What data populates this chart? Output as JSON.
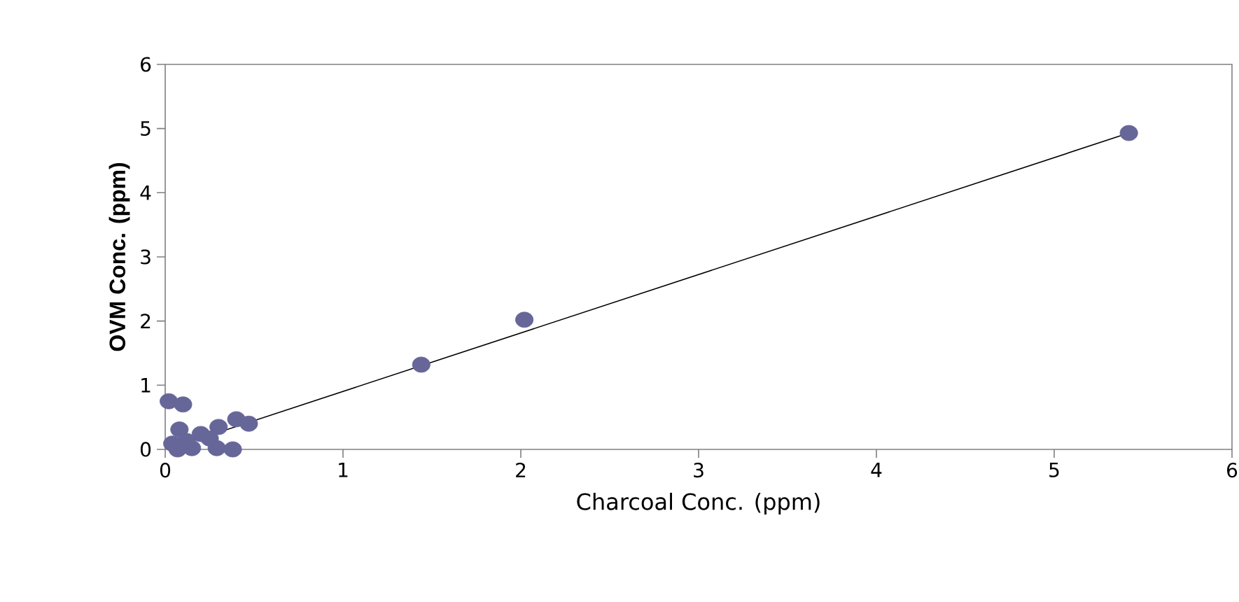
{
  "chart_data": {
    "type": "scatter",
    "xlabel": "Charcoal Conc. (ppm)",
    "ylabel": "OVM Conc. (ppm)",
    "xlim": [
      0,
      6
    ],
    "ylim": [
      0,
      6
    ],
    "xticks": [
      0,
      1,
      2,
      3,
      4,
      5,
      6
    ],
    "yticks": [
      0,
      1,
      2,
      3,
      4,
      5,
      6
    ],
    "grid": false,
    "series": [
      {
        "marker": "circle",
        "color": "#666699",
        "x": [
          0.02,
          0.1,
          0.08,
          0.04,
          0.15,
          0.07,
          0.2,
          0.3,
          0.4,
          0.47,
          0.29,
          0.38,
          0.25,
          0.12,
          1.44,
          2.02,
          5.42
        ],
        "values": [
          0.75,
          0.7,
          0.31,
          0.09,
          0.02,
          0.0,
          0.24,
          0.35,
          0.47,
          0.4,
          0.02,
          0.0,
          0.17,
          0.13,
          1.32,
          2.02,
          4.93
        ]
      },
      {
        "type": "line",
        "marker": "none",
        "color": "#000000",
        "x": [
          0.03,
          5.42
        ],
        "values": [
          0.02,
          4.93
        ]
      }
    ]
  }
}
